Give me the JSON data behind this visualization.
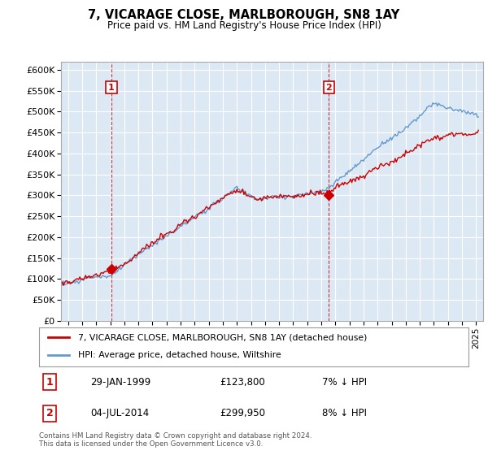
{
  "title": "7, VICARAGE CLOSE, MARLBOROUGH, SN8 1AY",
  "subtitle": "Price paid vs. HM Land Registry's House Price Index (HPI)",
  "ylim": [
    0,
    620000
  ],
  "yticks": [
    0,
    50000,
    100000,
    150000,
    200000,
    250000,
    300000,
    350000,
    400000,
    450000,
    500000,
    550000,
    600000
  ],
  "xmin": 1995.5,
  "xmax": 2025.5,
  "sale1_x": 1999.08,
  "sale1_y": 123800,
  "sale1_label": "1",
  "sale1_date": "29-JAN-1999",
  "sale1_price": "£123,800",
  "sale1_hpi": "7% ↓ HPI",
  "sale2_x": 2014.54,
  "sale2_y": 299950,
  "sale2_label": "2",
  "sale2_date": "04-JUL-2014",
  "sale2_price": "£299,950",
  "sale2_hpi": "8% ↓ HPI",
  "legend_line1": "7, VICARAGE CLOSE, MARLBOROUGH, SN8 1AY (detached house)",
  "legend_line2": "HPI: Average price, detached house, Wiltshire",
  "footer": "Contains HM Land Registry data © Crown copyright and database right 2024.\nThis data is licensed under the Open Government Licence v3.0.",
  "line_color_red": "#cc0000",
  "line_color_blue": "#6699cc",
  "bg_plot": "#dce9f5",
  "bg_color": "#ffffff",
  "grid_color": "#ffffff"
}
